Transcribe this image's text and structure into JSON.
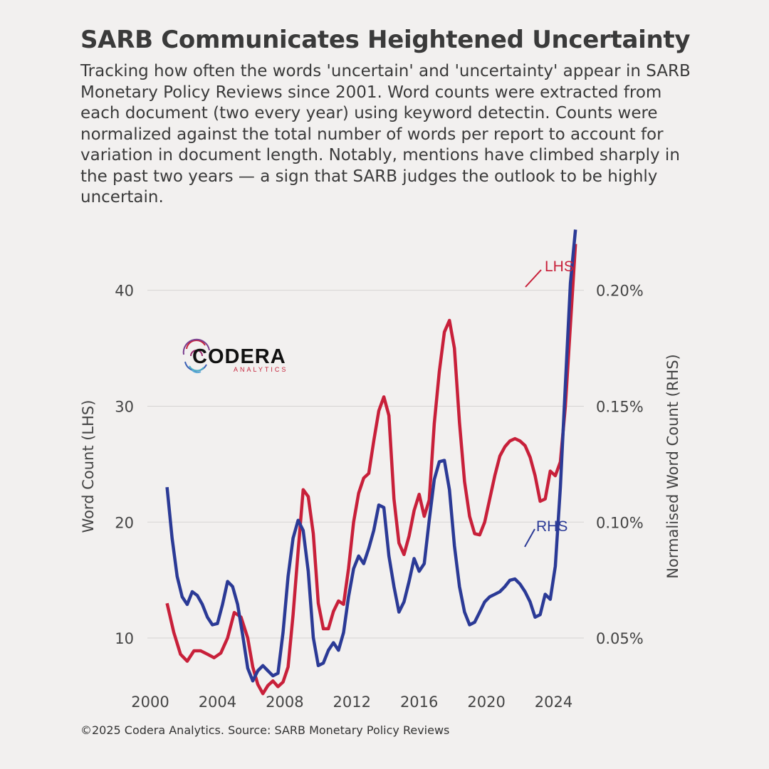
{
  "title": "SARB Communicates Heightened Uncertainty",
  "subtitle": "Tracking how often the words 'uncertain' and 'uncertainty' appear in SARB Monetary Policy Reviews since 2001. Word counts were extracted from each document (two every year) using keyword detectin. Counts were normalized against the total number of words per report to account for variation in document length. Notably, mentions have climbed sharply in the past two years — a sign that SARB judges the outlook to be highly uncertain.",
  "footer": "©2025 Codera Analytics. Source: SARB Monetary Policy Reviews",
  "logo": {
    "name": "CODERA",
    "tagline": "ANALYTICS"
  },
  "colors": {
    "lhs": "#c8203a",
    "rhs": "#2b3a96",
    "grid": "#d6d4d3",
    "background": "#f2f0ef"
  },
  "chart_data": {
    "type": "line",
    "xlim": [
      2000,
      2025.8
    ],
    "x_ticks": [
      "2000",
      "2004",
      "2008",
      "2012",
      "2016",
      "2020",
      "2024"
    ],
    "y_left": {
      "label": "Word Count (LHS)",
      "ticks": [
        "10",
        "20",
        "30",
        "40"
      ],
      "range": [
        3,
        46
      ]
    },
    "y_right": {
      "label": "Normalised Word Count (RHS)",
      "ticks": [
        "0.05%",
        "0.10%",
        "0.15%",
        "0.20%"
      ],
      "range": [
        0.024,
        0.2195
      ]
    },
    "grid": "horizontal",
    "annotations": {
      "lhs": "LHS",
      "rhs": "RHS"
    },
    "series": [
      {
        "name": "LHS",
        "axis": "left",
        "points": [
          [
            2001.0,
            13.0
          ],
          [
            2001.4,
            10.5
          ],
          [
            2001.8,
            8.6
          ],
          [
            2002.2,
            8.0
          ],
          [
            2002.6,
            8.9
          ],
          [
            2003.0,
            8.9
          ],
          [
            2003.4,
            8.6
          ],
          [
            2003.8,
            8.3
          ],
          [
            2004.2,
            8.7
          ],
          [
            2004.6,
            10.0
          ],
          [
            2005.0,
            12.2
          ],
          [
            2005.4,
            11.8
          ],
          [
            2005.8,
            10.0
          ],
          [
            2006.1,
            7.5
          ],
          [
            2006.4,
            6.0
          ],
          [
            2006.7,
            5.2
          ],
          [
            2007.0,
            5.9
          ],
          [
            2007.3,
            6.3
          ],
          [
            2007.6,
            5.8
          ],
          [
            2007.9,
            6.2
          ],
          [
            2008.2,
            7.5
          ],
          [
            2008.5,
            12.0
          ],
          [
            2008.8,
            17.5
          ],
          [
            2009.1,
            22.8
          ],
          [
            2009.4,
            22.2
          ],
          [
            2009.7,
            19.0
          ],
          [
            2010.0,
            13.0
          ],
          [
            2010.3,
            10.8
          ],
          [
            2010.6,
            10.8
          ],
          [
            2010.9,
            12.3
          ],
          [
            2011.2,
            13.2
          ],
          [
            2011.5,
            12.9
          ],
          [
            2011.8,
            16.0
          ],
          [
            2012.1,
            20.0
          ],
          [
            2012.4,
            22.5
          ],
          [
            2012.7,
            23.8
          ],
          [
            2013.0,
            24.2
          ],
          [
            2013.3,
            27.0
          ],
          [
            2013.6,
            29.6
          ],
          [
            2013.9,
            30.8
          ],
          [
            2014.2,
            29.2
          ],
          [
            2014.5,
            22.0
          ],
          [
            2014.8,
            18.2
          ],
          [
            2015.1,
            17.2
          ],
          [
            2015.4,
            18.8
          ],
          [
            2015.7,
            21.0
          ],
          [
            2016.0,
            22.4
          ],
          [
            2016.3,
            20.5
          ],
          [
            2016.6,
            21.9
          ],
          [
            2016.9,
            28.5
          ],
          [
            2017.2,
            33.0
          ],
          [
            2017.5,
            36.4
          ],
          [
            2017.8,
            37.4
          ],
          [
            2018.1,
            35.0
          ],
          [
            2018.4,
            28.6
          ],
          [
            2018.7,
            23.5
          ],
          [
            2019.0,
            20.5
          ],
          [
            2019.3,
            19.0
          ],
          [
            2019.6,
            18.9
          ],
          [
            2019.9,
            20.0
          ],
          [
            2020.2,
            22.0
          ],
          [
            2020.5,
            24.0
          ],
          [
            2020.8,
            25.7
          ],
          [
            2021.1,
            26.5
          ],
          [
            2021.4,
            27.0
          ],
          [
            2021.7,
            27.2
          ],
          [
            2022.0,
            27.0
          ],
          [
            2022.3,
            26.6
          ],
          [
            2022.6,
            25.6
          ],
          [
            2022.9,
            24.0
          ],
          [
            2023.2,
            21.8
          ],
          [
            2023.5,
            22.0
          ],
          [
            2023.8,
            24.4
          ],
          [
            2024.1,
            24.0
          ],
          [
            2024.4,
            25.2
          ],
          [
            2024.7,
            30.0
          ],
          [
            2025.0,
            37.0
          ],
          [
            2025.3,
            44.0
          ]
        ]
      },
      {
        "name": "RHS",
        "axis": "right",
        "points": [
          [
            2001.0,
            0.115
          ],
          [
            2001.3,
            0.095
          ],
          [
            2001.6,
            0.08
          ],
          [
            2001.9,
            0.072
          ],
          [
            2002.2,
            0.069
          ],
          [
            2002.5,
            0.074
          ],
          [
            2002.8,
            0.0725
          ],
          [
            2003.1,
            0.069
          ],
          [
            2003.4,
            0.064
          ],
          [
            2003.7,
            0.061
          ],
          [
            2004.0,
            0.0615
          ],
          [
            2004.3,
            0.069
          ],
          [
            2004.6,
            0.078
          ],
          [
            2004.9,
            0.076
          ],
          [
            2005.2,
            0.069
          ],
          [
            2005.5,
            0.057
          ],
          [
            2005.8,
            0.044
          ],
          [
            2006.1,
            0.039
          ],
          [
            2006.4,
            0.043
          ],
          [
            2006.7,
            0.045
          ],
          [
            2007.0,
            0.043
          ],
          [
            2007.3,
            0.041
          ],
          [
            2007.6,
            0.042
          ],
          [
            2007.9,
            0.058
          ],
          [
            2008.2,
            0.08
          ],
          [
            2008.5,
            0.095
          ],
          [
            2008.8,
            0.102
          ],
          [
            2009.1,
            0.098
          ],
          [
            2009.4,
            0.082
          ],
          [
            2009.7,
            0.056
          ],
          [
            2010.0,
            0.045
          ],
          [
            2010.3,
            0.046
          ],
          [
            2010.6,
            0.051
          ],
          [
            2010.9,
            0.054
          ],
          [
            2011.2,
            0.051
          ],
          [
            2011.5,
            0.058
          ],
          [
            2011.8,
            0.072
          ],
          [
            2012.1,
            0.083
          ],
          [
            2012.4,
            0.088
          ],
          [
            2012.7,
            0.085
          ],
          [
            2013.0,
            0.091
          ],
          [
            2013.3,
            0.098
          ],
          [
            2013.6,
            0.108
          ],
          [
            2013.9,
            0.107
          ],
          [
            2014.2,
            0.088
          ],
          [
            2014.5,
            0.076
          ],
          [
            2014.8,
            0.066
          ],
          [
            2015.1,
            0.07
          ],
          [
            2015.4,
            0.078
          ],
          [
            2015.7,
            0.087
          ],
          [
            2016.0,
            0.082
          ],
          [
            2016.3,
            0.085
          ],
          [
            2016.6,
            0.102
          ],
          [
            2016.9,
            0.118
          ],
          [
            2017.2,
            0.125
          ],
          [
            2017.5,
            0.1255
          ],
          [
            2017.8,
            0.114
          ],
          [
            2018.1,
            0.092
          ],
          [
            2018.4,
            0.076
          ],
          [
            2018.7,
            0.066
          ],
          [
            2019.0,
            0.061
          ],
          [
            2019.3,
            0.062
          ],
          [
            2019.6,
            0.066
          ],
          [
            2019.9,
            0.07
          ],
          [
            2020.2,
            0.072
          ],
          [
            2020.5,
            0.073
          ],
          [
            2020.8,
            0.074
          ],
          [
            2021.1,
            0.076
          ],
          [
            2021.4,
            0.0785
          ],
          [
            2021.7,
            0.079
          ],
          [
            2022.0,
            0.077
          ],
          [
            2022.3,
            0.074
          ],
          [
            2022.6,
            0.07
          ],
          [
            2022.9,
            0.064
          ],
          [
            2023.2,
            0.065
          ],
          [
            2023.5,
            0.073
          ],
          [
            2023.8,
            0.071
          ],
          [
            2024.1,
            0.084
          ],
          [
            2024.4,
            0.115
          ],
          [
            2024.7,
            0.155
          ],
          [
            2025.0,
            0.195
          ],
          [
            2025.3,
            0.216
          ]
        ]
      }
    ]
  }
}
